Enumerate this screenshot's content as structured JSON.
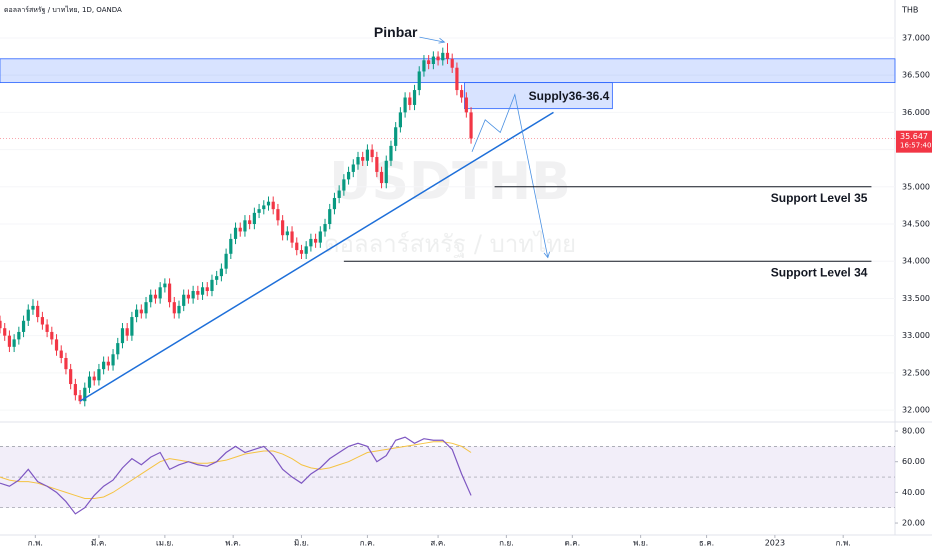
{
  "chart_data": {
    "type": "candlestick",
    "header": "ดอลลาร์สหรัฐ / บาทไทย, 1D, OANDA",
    "currency_label": "THB",
    "watermark": [
      "USDTHB",
      "ดอลลาร์สหรัฐ / บาทไทย"
    ],
    "colors": {
      "up": "#089981",
      "down": "#f23645",
      "zone": "#2962ff",
      "trend": "#1e6fd9",
      "last": "#f23645"
    },
    "xlim": [
      0,
      190
    ],
    "xticks": [
      {
        "value": 7.5,
        "label": "ก.พ."
      },
      {
        "value": 21,
        "label": "มี.ค."
      },
      {
        "value": 35,
        "label": "เม.ย."
      },
      {
        "value": 49.5,
        "label": "พ.ค."
      },
      {
        "value": 64,
        "label": "มิ.ย."
      },
      {
        "value": 78,
        "label": "ก.ค."
      },
      {
        "value": 93,
        "label": "ส.ค."
      },
      {
        "value": 107.5,
        "label": "ก.ย."
      },
      {
        "value": 121.5,
        "label": "ต.ค."
      },
      {
        "value": 136,
        "label": "พ.ย."
      },
      {
        "value": 150,
        "label": "ธ.ค."
      },
      {
        "value": 164.5,
        "label": "2023"
      },
      {
        "value": 179,
        "label": "ก.พ."
      }
    ],
    "ylim": [
      31.84,
      37.51
    ],
    "yticks": [
      {
        "value": 32,
        "label": "32.000"
      },
      {
        "value": 32.5,
        "label": "32.500"
      },
      {
        "value": 33,
        "label": "33.000"
      },
      {
        "value": 33.5,
        "label": "33.500"
      },
      {
        "value": 34,
        "label": "34.000"
      },
      {
        "value": 34.5,
        "label": "34.500"
      },
      {
        "value": 35,
        "label": "35.000"
      },
      {
        "value": 35.5,
        "label": "35.500"
      },
      {
        "value": 36,
        "label": "36.000"
      },
      {
        "value": 36.5,
        "label": "36.500"
      },
      {
        "value": 37,
        "label": "37.000"
      }
    ],
    "candles": [
      [
        33.2,
        33.27,
        33.03,
        33.1
      ],
      [
        33.1,
        33.17,
        32.93,
        33.0
      ],
      [
        33.0,
        33.07,
        32.78,
        32.85
      ],
      [
        32.85,
        33.02,
        32.78,
        32.95
      ],
      [
        32.95,
        33.12,
        32.88,
        33.05
      ],
      [
        33.05,
        33.27,
        32.98,
        33.2
      ],
      [
        33.2,
        33.42,
        33.13,
        33.35
      ],
      [
        33.35,
        33.49,
        33.28,
        33.4
      ],
      [
        33.4,
        33.47,
        33.18,
        33.25
      ],
      [
        33.25,
        33.32,
        33.08,
        33.15
      ],
      [
        33.15,
        33.22,
        32.98,
        33.05
      ],
      [
        33.05,
        33.12,
        32.88,
        32.95
      ],
      [
        32.95,
        33.02,
        32.73,
        32.8
      ],
      [
        32.8,
        32.87,
        32.63,
        32.7
      ],
      [
        32.7,
        32.77,
        32.48,
        32.55
      ],
      [
        32.55,
        32.62,
        32.28,
        32.35
      ],
      [
        32.35,
        32.42,
        32.13,
        32.2
      ],
      [
        32.2,
        32.27,
        32.08,
        32.12
      ],
      [
        32.12,
        32.37,
        32.05,
        32.3
      ],
      [
        32.3,
        32.52,
        32.23,
        32.45
      ],
      [
        32.45,
        32.52,
        32.33,
        32.4
      ],
      [
        32.4,
        32.62,
        32.33,
        32.55
      ],
      [
        32.55,
        32.72,
        32.48,
        32.65
      ],
      [
        32.65,
        32.72,
        32.53,
        32.6
      ],
      [
        32.6,
        32.82,
        32.53,
        32.75
      ],
      [
        32.75,
        32.97,
        32.68,
        32.9
      ],
      [
        32.9,
        33.17,
        32.83,
        33.1
      ],
      [
        33.1,
        33.17,
        32.93,
        33.0
      ],
      [
        33.0,
        33.32,
        32.93,
        33.25
      ],
      [
        33.25,
        33.42,
        33.18,
        33.35
      ],
      [
        33.35,
        33.42,
        33.23,
        33.3
      ],
      [
        33.3,
        33.52,
        33.23,
        33.45
      ],
      [
        33.45,
        33.62,
        33.38,
        33.55
      ],
      [
        33.55,
        33.62,
        33.43,
        33.5
      ],
      [
        33.5,
        33.72,
        33.43,
        33.65
      ],
      [
        33.65,
        33.77,
        33.58,
        33.7
      ],
      [
        33.7,
        33.77,
        33.38,
        33.45
      ],
      [
        33.45,
        33.52,
        33.23,
        33.3
      ],
      [
        33.3,
        33.47,
        33.23,
        33.4
      ],
      [
        33.4,
        33.62,
        33.33,
        33.55
      ],
      [
        33.55,
        33.62,
        33.43,
        33.5
      ],
      [
        33.5,
        33.67,
        33.43,
        33.6
      ],
      [
        33.6,
        33.67,
        33.48,
        33.55
      ],
      [
        33.55,
        33.72,
        33.48,
        33.65
      ],
      [
        33.65,
        33.72,
        33.53,
        33.6
      ],
      [
        33.6,
        33.82,
        33.53,
        33.75
      ],
      [
        33.75,
        33.87,
        33.68,
        33.8
      ],
      [
        33.8,
        33.97,
        33.73,
        33.9
      ],
      [
        33.9,
        34.17,
        33.83,
        34.1
      ],
      [
        34.1,
        34.37,
        34.03,
        34.3
      ],
      [
        34.3,
        34.52,
        34.23,
        34.45
      ],
      [
        34.45,
        34.52,
        34.33,
        34.4
      ],
      [
        34.4,
        34.62,
        34.33,
        34.55
      ],
      [
        34.55,
        34.62,
        34.43,
        34.5
      ],
      [
        34.5,
        34.72,
        34.43,
        34.65
      ],
      [
        34.65,
        34.77,
        34.58,
        34.7
      ],
      [
        34.7,
        34.82,
        34.63,
        34.75
      ],
      [
        34.75,
        34.87,
        34.68,
        34.8
      ],
      [
        34.8,
        34.87,
        34.63,
        34.7
      ],
      [
        34.7,
        34.77,
        34.48,
        34.55
      ],
      [
        34.55,
        34.62,
        34.28,
        34.35
      ],
      [
        34.35,
        34.47,
        34.28,
        34.4
      ],
      [
        34.4,
        34.47,
        34.18,
        34.25
      ],
      [
        34.25,
        34.32,
        34.08,
        34.15
      ],
      [
        34.15,
        34.22,
        34.03,
        34.1
      ],
      [
        34.1,
        34.27,
        34.03,
        34.2
      ],
      [
        34.2,
        34.37,
        34.13,
        34.3
      ],
      [
        34.3,
        34.37,
        34.18,
        34.25
      ],
      [
        34.25,
        34.47,
        34.18,
        34.4
      ],
      [
        34.4,
        34.57,
        34.33,
        34.5
      ],
      [
        34.5,
        34.77,
        34.43,
        34.7
      ],
      [
        34.7,
        34.92,
        34.63,
        34.85
      ],
      [
        34.85,
        35.02,
        34.78,
        34.95
      ],
      [
        34.95,
        35.17,
        34.88,
        35.1
      ],
      [
        35.1,
        35.27,
        35.03,
        35.2
      ],
      [
        35.2,
        35.37,
        35.13,
        35.3
      ],
      [
        35.3,
        35.47,
        35.23,
        35.4
      ],
      [
        35.4,
        35.47,
        35.28,
        35.35
      ],
      [
        35.35,
        35.57,
        35.28,
        35.5
      ],
      [
        35.5,
        35.57,
        35.33,
        35.4
      ],
      [
        35.4,
        35.47,
        35.13,
        35.2
      ],
      [
        35.2,
        35.27,
        34.98,
        35.05
      ],
      [
        35.05,
        35.42,
        34.98,
        35.35
      ],
      [
        35.35,
        35.62,
        35.28,
        35.55
      ],
      [
        35.55,
        35.87,
        35.48,
        35.8
      ],
      [
        35.8,
        36.07,
        35.73,
        36.0
      ],
      [
        36.0,
        36.27,
        35.93,
        36.2
      ],
      [
        36.2,
        36.27,
        36.03,
        36.1
      ],
      [
        36.1,
        36.37,
        36.03,
        36.3
      ],
      [
        36.3,
        36.62,
        36.23,
        36.55
      ],
      [
        36.55,
        36.77,
        36.48,
        36.7
      ],
      [
        36.7,
        36.77,
        36.58,
        36.65
      ],
      [
        36.65,
        36.82,
        36.58,
        36.75
      ],
      [
        36.75,
        36.82,
        36.63,
        36.7
      ],
      [
        36.7,
        36.87,
        36.63,
        36.8
      ],
      [
        36.8,
        36.93,
        36.65,
        36.72
      ],
      [
        36.72,
        36.79,
        36.53,
        36.6
      ],
      [
        36.6,
        36.67,
        36.23,
        36.3
      ],
      [
        36.3,
        36.37,
        36.13,
        36.2
      ],
      [
        36.2,
        36.27,
        35.93,
        36.0
      ],
      [
        36.0,
        36.07,
        35.58,
        35.65
      ]
    ],
    "last_price": {
      "value": 35.647,
      "countdown": "16:57:40"
    },
    "annotations": {
      "pinbar": {
        "text": "Pinbar",
        "candle": 95
      },
      "resistance_zone": [
        36.4,
        36.72
      ],
      "supply": {
        "text": "Supply36-36.4",
        "low": 36.05,
        "high": 36.4,
        "x": [
          98.6,
          130
        ]
      },
      "trendline": {
        "x": [
          17,
          117.5
        ],
        "y": [
          32.12,
          36.0
        ]
      },
      "projection": {
        "x": [
          100.2,
          103,
          106.2,
          109.3,
          116.3
        ],
        "y": [
          35.47,
          35.9,
          35.73,
          36.24,
          34.05
        ]
      },
      "supports": [
        {
          "text": "Support Level 35",
          "value": 35,
          "x": [
            105,
            185
          ]
        },
        {
          "text": "Support Level 34",
          "value": 34,
          "x": [
            73,
            185
          ]
        }
      ]
    },
    "rsi": {
      "ylim": [
        12.2,
        85.9
      ],
      "yticks": [
        {
          "value": 20,
          "label": "20.00"
        },
        {
          "value": 40,
          "label": "40.00"
        },
        {
          "value": 60,
          "label": "60.00"
        },
        {
          "value": 80,
          "label": "80.00"
        }
      ],
      "band": [
        30,
        70
      ],
      "mid": 50,
      "colors": {
        "line": "#7e57c2",
        "ma": "#f5c342",
        "band": "rgba(126,87,194,0.1)"
      },
      "x": [
        0,
        2,
        4,
        6,
        8,
        10,
        12,
        14,
        16,
        18,
        20,
        22,
        24,
        26,
        28,
        30,
        32,
        34,
        36,
        38,
        40,
        42,
        44,
        46,
        48,
        50,
        52,
        54,
        56,
        58,
        60,
        62,
        64,
        66,
        68,
        70,
        72,
        74,
        76,
        78,
        80,
        82,
        84,
        86,
        88,
        90,
        92,
        94,
        96,
        98,
        100
      ],
      "values": [
        46,
        44,
        48,
        55,
        47,
        44,
        40,
        34,
        26,
        30,
        38,
        44,
        48,
        56,
        62,
        58,
        63,
        66,
        55,
        58,
        60,
        58,
        57,
        60,
        66,
        70,
        66,
        68,
        70,
        64,
        55,
        50,
        46,
        52,
        56,
        62,
        66,
        70,
        72,
        70,
        60,
        64,
        74,
        76,
        72,
        75,
        74,
        74,
        68,
        52,
        38
      ],
      "ma": [
        50,
        48,
        47,
        47,
        46,
        44,
        42,
        40,
        38,
        36,
        36,
        37,
        40,
        44,
        48,
        52,
        56,
        60,
        62,
        61,
        60,
        59,
        59,
        60,
        61,
        63,
        65,
        66,
        67,
        67,
        65,
        62,
        58,
        56,
        55,
        56,
        58,
        60,
        63,
        66,
        67,
        68,
        69,
        70,
        71,
        72,
        73,
        73,
        72,
        70,
        66
      ]
    }
  }
}
